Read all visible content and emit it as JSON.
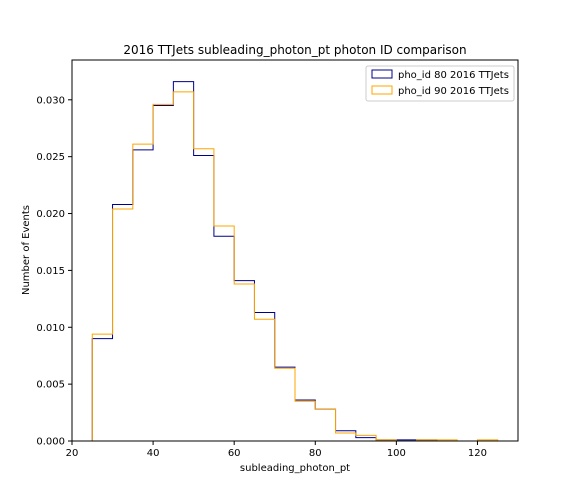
{
  "chart_data": {
    "type": "histogram-step",
    "title": "2016 TTJets subleading_photon_pt photon ID comparison",
    "xlabel": "subleading_photon_pt",
    "ylabel": "Number of Events",
    "xlim": [
      20,
      130
    ],
    "ylim": [
      0,
      0.0335
    ],
    "xticks": [
      20,
      40,
      60,
      80,
      100,
      120
    ],
    "yticks": [
      0.0,
      0.005,
      0.01,
      0.015,
      0.02,
      0.025,
      0.03
    ],
    "ytick_labels": [
      "0.000",
      "0.005",
      "0.010",
      "0.015",
      "0.020",
      "0.025",
      "0.030"
    ],
    "bin_edges": [
      25,
      30,
      35,
      40,
      45,
      50,
      55,
      60,
      65,
      70,
      75,
      80,
      85,
      90,
      95,
      100,
      105,
      110,
      115,
      120,
      125
    ],
    "series": [
      {
        "name": "pho_id 80 2016 TTJets",
        "color": "#00008b",
        "values": [
          0.009,
          0.0208,
          0.0256,
          0.0295,
          0.0316,
          0.0251,
          0.018,
          0.0141,
          0.0113,
          0.0065,
          0.0036,
          0.0028,
          0.0009,
          0.0003,
          0.0001,
          0.0001,
          0.0001,
          0.0,
          0.0,
          0.0
        ]
      },
      {
        "name": "pho_id 90 2016 TTJets",
        "color": "#ffa500",
        "values": [
          0.0094,
          0.0204,
          0.0261,
          0.0296,
          0.0307,
          0.0257,
          0.0189,
          0.0138,
          0.0107,
          0.0064,
          0.0035,
          0.0028,
          0.0007,
          0.0005,
          0.0001,
          0.0,
          0.0001,
          0.0001,
          0.0,
          0.0001
        ]
      }
    ],
    "legend_position": "top-right",
    "grid": false
  }
}
